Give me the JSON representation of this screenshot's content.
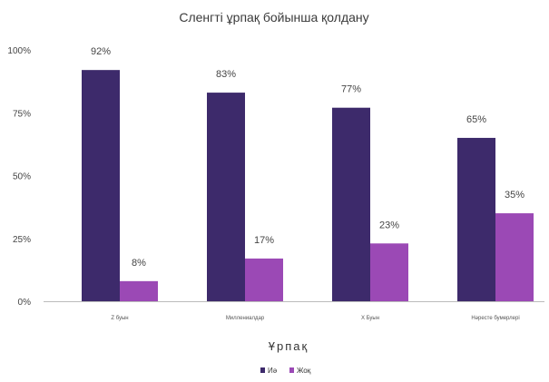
{
  "chart_data": {
    "type": "bar",
    "title": "Сленгті ұрпақ бойынша қолдану",
    "xlabel": "Ұрпақ",
    "ylabel": "",
    "categories": [
      "Z буын",
      "Миллениалдар",
      "X Буын",
      "Нәресте бумерлері"
    ],
    "series": [
      {
        "name": "Иә",
        "values": [
          92,
          83,
          77,
          65
        ],
        "color": "#3d2a6b"
      },
      {
        "name": "Жоқ",
        "values": [
          8,
          17,
          23,
          35
        ],
        "color": "#9b49b5"
      }
    ],
    "ylim": [
      0,
      100
    ],
    "yticks": [
      "0%",
      "25%",
      "50%",
      "75%",
      "100%"
    ],
    "ytick_values": [
      0,
      25,
      50,
      75,
      100
    ],
    "data_labels": [
      [
        "92%",
        "83%",
        "77%",
        "65%"
      ],
      [
        "8%",
        "17%",
        "23%",
        "35%"
      ]
    ],
    "grid": false,
    "legend": "bottom-center"
  }
}
